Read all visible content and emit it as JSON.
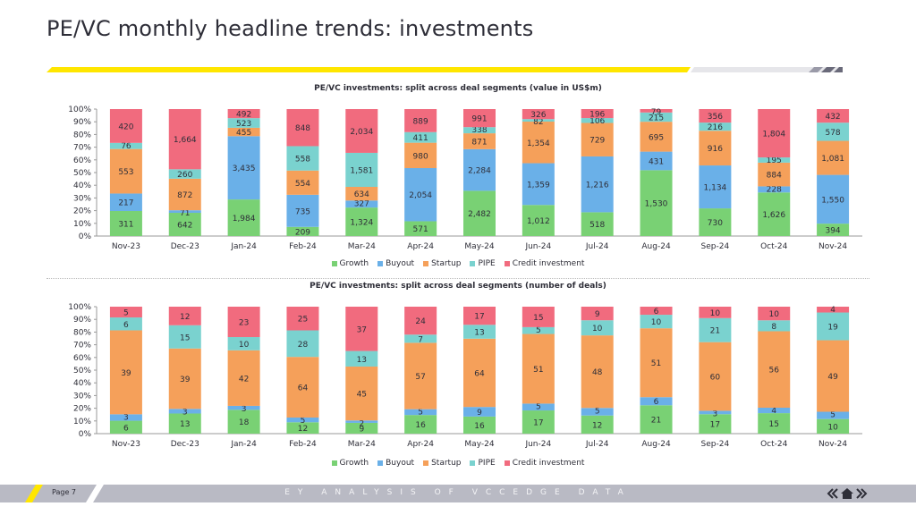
{
  "page": {
    "title": "PE/VC monthly headline trends: investments",
    "page_label": "Page 7",
    "footer_text": "EY ANALYSIS OF VCCEDGE DATA",
    "colors": {
      "yellow": "#ffe600",
      "footer": "#b9bac4"
    }
  },
  "legend": {
    "items": [
      {
        "name": "Growth",
        "color": "#79d174"
      },
      {
        "name": "Buyout",
        "color": "#6ab0e8"
      },
      {
        "name": "Startup",
        "color": "#f5a05a"
      },
      {
        "name": "PIPE",
        "color": "#7ad2cf"
      },
      {
        "name": "Credit investment",
        "color": "#f16b7e"
      }
    ]
  },
  "chart_data": [
    {
      "type": "bar",
      "stacked": "percent",
      "title": "PE/VC investments: split across deal segments (value in US$m)",
      "categories": [
        "Nov-23",
        "Dec-23",
        "Jan-24",
        "Feb-24",
        "Mar-24",
        "Apr-24",
        "May-24",
        "Jun-24",
        "Jul-24",
        "Aug-24",
        "Sep-24",
        "Oct-24",
        "Nov-24"
      ],
      "y_ticks": [
        "0%",
        "10%",
        "20%",
        "30%",
        "40%",
        "50%",
        "60%",
        "70%",
        "80%",
        "90%",
        "100%"
      ],
      "ylim": [
        0,
        100
      ],
      "legend_position": "bottom",
      "series": [
        {
          "name": "Growth",
          "values": [
            311,
            642,
            1984,
            209,
            1324,
            571,
            2482,
            1012,
            518,
            1530,
            730,
            1626,
            394
          ]
        },
        {
          "name": "Buyout",
          "values": [
            217,
            71,
            3435,
            735,
            327,
            2054,
            2284,
            1359,
            1216,
            431,
            1134,
            228,
            1550
          ]
        },
        {
          "name": "Startup",
          "values": [
            553,
            872,
            455,
            554,
            634,
            980,
            871,
            1354,
            729,
            695,
            916,
            884,
            1081
          ]
        },
        {
          "name": "PIPE",
          "values": [
            76,
            260,
            523,
            558,
            1581,
            411,
            338,
            82,
            106,
            215,
            216,
            195,
            578
          ]
        },
        {
          "name": "Credit investment",
          "values": [
            420,
            1664,
            492,
            848,
            2034,
            889,
            991,
            326,
            196,
            79,
            356,
            1804,
            432
          ]
        }
      ]
    },
    {
      "type": "bar",
      "stacked": "percent",
      "title": "PE/VC investments: split across deal segments (number of deals)",
      "categories": [
        "Nov-23",
        "Dec-23",
        "Jan-24",
        "Feb-24",
        "Mar-24",
        "Apr-24",
        "May-24",
        "Jun-24",
        "Jul-24",
        "Aug-24",
        "Sep-24",
        "Oct-24",
        "Nov-24"
      ],
      "y_ticks": [
        "0%",
        "10%",
        "20%",
        "30%",
        "40%",
        "50%",
        "60%",
        "70%",
        "80%",
        "90%",
        "100%"
      ],
      "ylim": [
        0,
        100
      ],
      "legend_position": "bottom",
      "series": [
        {
          "name": "Growth",
          "values": [
            6,
            13,
            18,
            12,
            9,
            16,
            16,
            17,
            12,
            21,
            17,
            15,
            10
          ]
        },
        {
          "name": "Buyout",
          "values": [
            3,
            3,
            3,
            5,
            2,
            5,
            9,
            5,
            5,
            6,
            3,
            4,
            5
          ]
        },
        {
          "name": "Startup",
          "values": [
            39,
            39,
            42,
            64,
            45,
            57,
            64,
            51,
            48,
            51,
            60,
            56,
            49
          ]
        },
        {
          "name": "PIPE",
          "values": [
            6,
            15,
            10,
            28,
            13,
            7,
            13,
            5,
            10,
            10,
            21,
            8,
            19
          ]
        },
        {
          "name": "Credit investment",
          "values": [
            5,
            12,
            23,
            25,
            37,
            24,
            17,
            15,
            9,
            6,
            10,
            10,
            4
          ]
        }
      ]
    }
  ]
}
